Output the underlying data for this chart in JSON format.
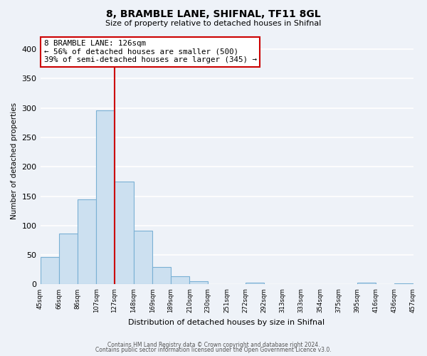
{
  "title": "8, BRAMBLE LANE, SHIFNAL, TF11 8GL",
  "subtitle": "Size of property relative to detached houses in Shifnal",
  "xlabel": "Distribution of detached houses by size in Shifnal",
  "ylabel": "Number of detached properties",
  "bar_color": "#cce0f0",
  "bar_edge_color": "#7ab0d4",
  "bin_edges": [
    45,
    66,
    86,
    107,
    127,
    148,
    169,
    189,
    210,
    230,
    251,
    272,
    292,
    313,
    333,
    354,
    375,
    395,
    416,
    436,
    457
  ],
  "bar_heights": [
    47,
    86,
    144,
    296,
    175,
    91,
    30,
    14,
    5,
    0,
    0,
    3,
    0,
    0,
    0,
    0,
    0,
    3,
    0,
    2
  ],
  "tick_labels": [
    "45sqm",
    "66sqm",
    "86sqm",
    "107sqm",
    "127sqm",
    "148sqm",
    "169sqm",
    "189sqm",
    "210sqm",
    "230sqm",
    "251sqm",
    "272sqm",
    "292sqm",
    "313sqm",
    "333sqm",
    "354sqm",
    "375sqm",
    "395sqm",
    "416sqm",
    "436sqm",
    "457sqm"
  ],
  "vline_x": 127,
  "vline_color": "#cc0000",
  "annotation_line1": "8 BRAMBLE LANE: 126sqm",
  "annotation_line2": "← 56% of detached houses are smaller (500)",
  "annotation_line3": "39% of semi-detached houses are larger (345) →",
  "ylim": [
    0,
    420
  ],
  "footnote1": "Contains HM Land Registry data © Crown copyright and database right 2024.",
  "footnote2": "Contains public sector information licensed under the Open Government Licence v3.0.",
  "background_color": "#eef2f8",
  "grid_color": "#ffffff",
  "yticks": [
    0,
    50,
    100,
    150,
    200,
    250,
    300,
    350,
    400
  ]
}
